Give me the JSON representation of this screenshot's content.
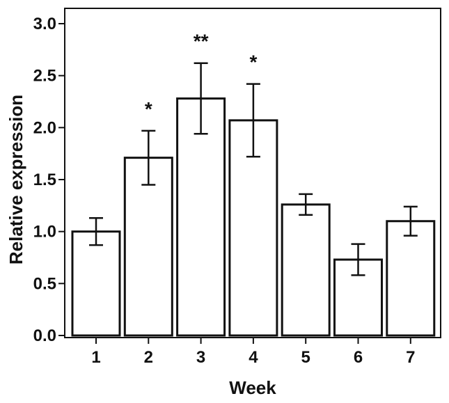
{
  "chart_data": {
    "type": "bar",
    "title": "",
    "xlabel": "Week",
    "ylabel": "Relative expression",
    "categories": [
      "1",
      "2",
      "3",
      "4",
      "5",
      "6",
      "7"
    ],
    "values": [
      1.0,
      1.71,
      2.28,
      2.07,
      1.26,
      0.73,
      1.1
    ],
    "errors": [
      0.13,
      0.26,
      0.34,
      0.35,
      0.1,
      0.15,
      0.14
    ],
    "significance": [
      "",
      "*",
      "**",
      "*",
      "",
      "",
      ""
    ],
    "ylim": [
      0,
      3.2
    ],
    "yticks": [
      0.0,
      0.5,
      1.0,
      1.5,
      2.0,
      2.5,
      3.0
    ],
    "ytick_labels": [
      "0.0",
      "0.5",
      "1.0",
      "1.5",
      "2.0",
      "2.5",
      "3.0"
    ],
    "grid": false,
    "bar_fill": "#ffffff",
    "bar_stroke": "#111111"
  }
}
